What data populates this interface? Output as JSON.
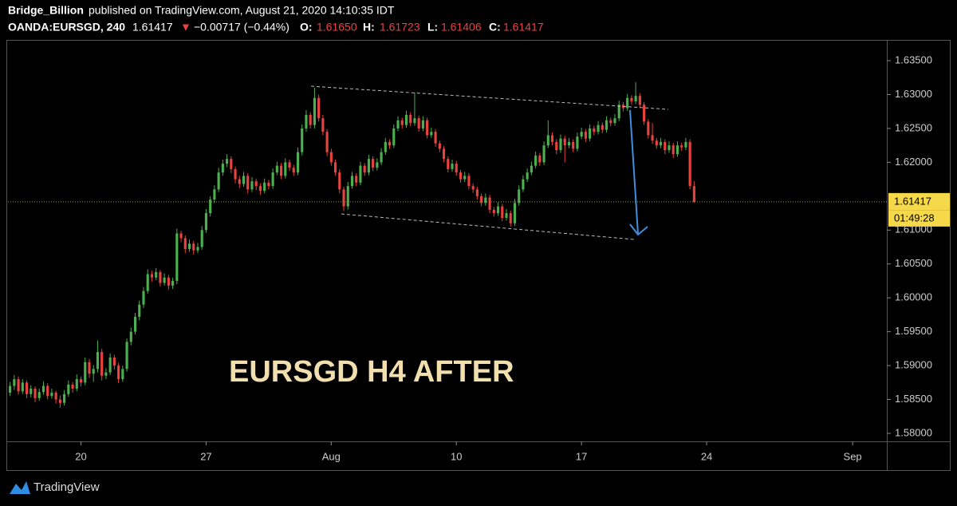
{
  "header": {
    "author": "Bridge_Billion",
    "published": "published on TradingView.com, August 21, 2020 14:10:35 IDT",
    "symbol": "OANDA:EURSGD, 240",
    "last": "1.61417",
    "arrow": "▼",
    "change": "−0.00717 (−0.44%)",
    "open_label": "O:",
    "open": "1.61650",
    "high_label": "H:",
    "high": "1.61723",
    "low_label": "L:",
    "low": "1.61406",
    "close_label": "C:",
    "close": "1.61417"
  },
  "chart_data": {
    "type": "candlestick",
    "annotation": "EURSGD H4 AFTER",
    "up_color": "#4caf50",
    "down_color": "#e8433e",
    "price_tag": "1.61417",
    "countdown": "01:49:28",
    "xlim": [
      -0.5,
      210.2
    ],
    "xticks": [
      {
        "value": 17,
        "label": "20"
      },
      {
        "value": 47,
        "label": "27"
      },
      {
        "value": 77,
        "label": "Aug"
      },
      {
        "value": 107,
        "label": "10"
      },
      {
        "value": 137,
        "label": "17"
      },
      {
        "value": 167,
        "label": "24"
      },
      {
        "value": 202,
        "label": "Sep"
      }
    ],
    "ylim": [
      1.57882,
      1.63783
    ],
    "yticks": [
      {
        "value": 1.58,
        "label": "1.58000"
      },
      {
        "value": 1.585,
        "label": "1.58500"
      },
      {
        "value": 1.59,
        "label": "1.59000"
      },
      {
        "value": 1.595,
        "label": "1.59500"
      },
      {
        "value": 1.6,
        "label": "1.60000"
      },
      {
        "value": 1.605,
        "label": "1.60500"
      },
      {
        "value": 1.61,
        "label": "1.61000"
      },
      {
        "value": 1.62,
        "label": "1.62000"
      },
      {
        "value": 1.625,
        "label": "1.62500"
      },
      {
        "value": 1.63,
        "label": "1.63000"
      },
      {
        "value": 1.635,
        "label": "1.63500"
      }
    ],
    "candles": [
      [
        1.586,
        1.5876,
        1.5855,
        1.587
      ],
      [
        1.587,
        1.5886,
        1.5864,
        1.588
      ],
      [
        1.588,
        1.5884,
        1.5857,
        1.5862
      ],
      [
        1.5862,
        1.588,
        1.5858,
        1.5875
      ],
      [
        1.5875,
        1.5878,
        1.5852,
        1.5858
      ],
      [
        1.5858,
        1.5871,
        1.5853,
        1.5866
      ],
      [
        1.5866,
        1.5869,
        1.5846,
        1.5852
      ],
      [
        1.5852,
        1.5866,
        1.5848,
        1.5861
      ],
      [
        1.5861,
        1.5877,
        1.5857,
        1.587
      ],
      [
        1.587,
        1.5874,
        1.585,
        1.5855
      ],
      [
        1.5855,
        1.5866,
        1.5851,
        1.586
      ],
      [
        1.586,
        1.5863,
        1.5844,
        1.585
      ],
      [
        1.585,
        1.5856,
        1.5838,
        1.5845
      ],
      [
        1.5845,
        1.5864,
        1.5841,
        1.5858
      ],
      [
        1.5858,
        1.5878,
        1.5854,
        1.5872
      ],
      [
        1.5872,
        1.5876,
        1.586,
        1.5866
      ],
      [
        1.5866,
        1.5887,
        1.5862,
        1.588
      ],
      [
        1.588,
        1.5884,
        1.5869,
        1.5875
      ],
      [
        1.5875,
        1.5912,
        1.5871,
        1.5905
      ],
      [
        1.5905,
        1.591,
        1.5882,
        1.5888
      ],
      [
        1.5888,
        1.5901,
        1.5876,
        1.5895
      ],
      [
        1.5895,
        1.5937,
        1.589,
        1.592
      ],
      [
        1.592,
        1.5925,
        1.5878,
        1.5885
      ],
      [
        1.5885,
        1.5896,
        1.588,
        1.589
      ],
      [
        1.589,
        1.5918,
        1.5886,
        1.5912
      ],
      [
        1.5912,
        1.5916,
        1.5894,
        1.59
      ],
      [
        1.59,
        1.5904,
        1.5874,
        1.588
      ],
      [
        1.588,
        1.59,
        1.5876,
        1.5895
      ],
      [
        1.5895,
        1.594,
        1.5891,
        1.5935
      ],
      [
        1.5935,
        1.5956,
        1.593,
        1.595
      ],
      [
        1.595,
        1.5978,
        1.5946,
        1.5972
      ],
      [
        1.5972,
        1.5996,
        1.5967,
        1.599
      ],
      [
        1.599,
        1.6016,
        1.5985,
        1.601
      ],
      [
        1.601,
        1.6042,
        1.6006,
        1.6035
      ],
      [
        1.6035,
        1.604,
        1.6024,
        1.603
      ],
      [
        1.603,
        1.6044,
        1.6026,
        1.6038
      ],
      [
        1.6038,
        1.6041,
        1.6017,
        1.6022
      ],
      [
        1.6022,
        1.6036,
        1.6018,
        1.603
      ],
      [
        1.603,
        1.6034,
        1.6012,
        1.6018
      ],
      [
        1.6018,
        1.603,
        1.6013,
        1.6025
      ],
      [
        1.6025,
        1.6102,
        1.602,
        1.6095
      ],
      [
        1.6095,
        1.6099,
        1.6082,
        1.6088
      ],
      [
        1.6088,
        1.6092,
        1.6066,
        1.6072
      ],
      [
        1.6072,
        1.6086,
        1.6068,
        1.608
      ],
      [
        1.608,
        1.6084,
        1.6064,
        1.607
      ],
      [
        1.607,
        1.6081,
        1.6066,
        1.6075
      ],
      [
        1.6075,
        1.6106,
        1.6071,
        1.61
      ],
      [
        1.61,
        1.6131,
        1.6096,
        1.6125
      ],
      [
        1.6125,
        1.615,
        1.612,
        1.6145
      ],
      [
        1.6145,
        1.6166,
        1.614,
        1.616
      ],
      [
        1.616,
        1.6192,
        1.6156,
        1.6185
      ],
      [
        1.6185,
        1.6204,
        1.618,
        1.6198
      ],
      [
        1.6198,
        1.6212,
        1.6193,
        1.6205
      ],
      [
        1.6205,
        1.6209,
        1.6184,
        1.619
      ],
      [
        1.619,
        1.6194,
        1.6169,
        1.6175
      ],
      [
        1.6175,
        1.618,
        1.6162,
        1.6168
      ],
      [
        1.6168,
        1.6186,
        1.6164,
        1.618
      ],
      [
        1.618,
        1.6184,
        1.6154,
        1.616
      ],
      [
        1.616,
        1.6178,
        1.6156,
        1.6172
      ],
      [
        1.6172,
        1.6176,
        1.6159,
        1.6165
      ],
      [
        1.6165,
        1.6169,
        1.6152,
        1.6158
      ],
      [
        1.6158,
        1.6176,
        1.6154,
        1.617
      ],
      [
        1.617,
        1.6174,
        1.616,
        1.6165
      ],
      [
        1.6165,
        1.6191,
        1.6161,
        1.6185
      ],
      [
        1.6185,
        1.6201,
        1.6181,
        1.6195
      ],
      [
        1.6195,
        1.6199,
        1.6175,
        1.618
      ],
      [
        1.618,
        1.6206,
        1.6176,
        1.62
      ],
      [
        1.62,
        1.6204,
        1.6187,
        1.6192
      ],
      [
        1.6192,
        1.6196,
        1.618,
        1.6185
      ],
      [
        1.6185,
        1.6222,
        1.6181,
        1.6215
      ],
      [
        1.6215,
        1.6256,
        1.621,
        1.625
      ],
      [
        1.625,
        1.6277,
        1.6245,
        1.627
      ],
      [
        1.627,
        1.6274,
        1.625,
        1.6255
      ],
      [
        1.6255,
        1.631,
        1.625,
        1.6295
      ],
      [
        1.6295,
        1.63,
        1.626,
        1.6265
      ],
      [
        1.6265,
        1.627,
        1.624,
        1.6245
      ],
      [
        1.6245,
        1.6249,
        1.6209,
        1.6215
      ],
      [
        1.6215,
        1.622,
        1.6195,
        1.62
      ],
      [
        1.62,
        1.6204,
        1.618,
        1.6185
      ],
      [
        1.6185,
        1.619,
        1.6154,
        1.616
      ],
      [
        1.616,
        1.6164,
        1.6128,
        1.6135
      ],
      [
        1.6135,
        1.6171,
        1.613,
        1.6165
      ],
      [
        1.6165,
        1.6186,
        1.6161,
        1.618
      ],
      [
        1.618,
        1.6184,
        1.6165,
        1.617
      ],
      [
        1.617,
        1.6201,
        1.6166,
        1.6195
      ],
      [
        1.6195,
        1.6199,
        1.618,
        1.6185
      ],
      [
        1.6185,
        1.6211,
        1.6181,
        1.6205
      ],
      [
        1.6205,
        1.6209,
        1.6187,
        1.6192
      ],
      [
        1.6192,
        1.6206,
        1.6188,
        1.62
      ],
      [
        1.62,
        1.6221,
        1.6196,
        1.6215
      ],
      [
        1.6215,
        1.6236,
        1.6211,
        1.623
      ],
      [
        1.623,
        1.6234,
        1.622,
        1.6225
      ],
      [
        1.6225,
        1.6256,
        1.6221,
        1.625
      ],
      [
        1.625,
        1.6268,
        1.6246,
        1.6262
      ],
      [
        1.6262,
        1.6266,
        1.625,
        1.6255
      ],
      [
        1.6255,
        1.6276,
        1.6251,
        1.627
      ],
      [
        1.627,
        1.6274,
        1.6253,
        1.6258
      ],
      [
        1.6258,
        1.6303,
        1.6254,
        1.6265
      ],
      [
        1.6265,
        1.6269,
        1.6245,
        1.625
      ],
      [
        1.625,
        1.6268,
        1.6246,
        1.6262
      ],
      [
        1.6262,
        1.6266,
        1.6235,
        1.624
      ],
      [
        1.624,
        1.6251,
        1.6236,
        1.6245
      ],
      [
        1.6245,
        1.6249,
        1.6223,
        1.6228
      ],
      [
        1.6228,
        1.6232,
        1.6215,
        1.622
      ],
      [
        1.622,
        1.6224,
        1.62,
        1.6205
      ],
      [
        1.6205,
        1.6209,
        1.6185,
        1.619
      ],
      [
        1.619,
        1.6204,
        1.6186,
        1.6198
      ],
      [
        1.6198,
        1.6202,
        1.618,
        1.6185
      ],
      [
        1.6185,
        1.6189,
        1.617,
        1.6175
      ],
      [
        1.6175,
        1.6186,
        1.6171,
        1.618
      ],
      [
        1.618,
        1.6184,
        1.616,
        1.6165
      ],
      [
        1.6165,
        1.6169,
        1.6155,
        1.616
      ],
      [
        1.616,
        1.6164,
        1.6145,
        1.615
      ],
      [
        1.615,
        1.6154,
        1.6135,
        1.614
      ],
      [
        1.614,
        1.6154,
        1.6136,
        1.6148
      ],
      [
        1.6148,
        1.6152,
        1.6125,
        1.613
      ],
      [
        1.613,
        1.6134,
        1.612,
        1.6125
      ],
      [
        1.6125,
        1.6141,
        1.6121,
        1.6135
      ],
      [
        1.6135,
        1.6139,
        1.6113,
        1.6118
      ],
      [
        1.6118,
        1.6131,
        1.6114,
        1.6125
      ],
      [
        1.6125,
        1.6129,
        1.6105,
        1.611
      ],
      [
        1.611,
        1.6146,
        1.6106,
        1.614
      ],
      [
        1.614,
        1.6166,
        1.6136,
        1.616
      ],
      [
        1.616,
        1.6181,
        1.6156,
        1.6175
      ],
      [
        1.6175,
        1.6191,
        1.6171,
        1.6185
      ],
      [
        1.6185,
        1.6201,
        1.6181,
        1.6195
      ],
      [
        1.6195,
        1.6216,
        1.6191,
        1.621
      ],
      [
        1.621,
        1.6214,
        1.6195,
        1.62
      ],
      [
        1.62,
        1.6231,
        1.6196,
        1.6225
      ],
      [
        1.6225,
        1.6262,
        1.6221,
        1.624
      ],
      [
        1.624,
        1.6244,
        1.6225,
        1.623
      ],
      [
        1.623,
        1.6234,
        1.6212,
        1.6218
      ],
      [
        1.6218,
        1.6241,
        1.6214,
        1.6235
      ],
      [
        1.6235,
        1.6239,
        1.62,
        1.6225
      ],
      [
        1.6225,
        1.6236,
        1.6221,
        1.623
      ],
      [
        1.623,
        1.6234,
        1.6215,
        1.622
      ],
      [
        1.622,
        1.6244,
        1.6216,
        1.6238
      ],
      [
        1.6238,
        1.6251,
        1.6234,
        1.6245
      ],
      [
        1.6245,
        1.6249,
        1.623,
        1.6235
      ],
      [
        1.6235,
        1.6256,
        1.6231,
        1.625
      ],
      [
        1.625,
        1.6254,
        1.624,
        1.6245
      ],
      [
        1.6245,
        1.6261,
        1.6241,
        1.6255
      ],
      [
        1.6255,
        1.6259,
        1.6243,
        1.6248
      ],
      [
        1.6248,
        1.6268,
        1.6244,
        1.6262
      ],
      [
        1.6262,
        1.6266,
        1.6253,
        1.6258
      ],
      [
        1.6258,
        1.6271,
        1.6254,
        1.6265
      ],
      [
        1.6265,
        1.6291,
        1.6261,
        1.6285
      ],
      [
        1.6285,
        1.6289,
        1.6275,
        1.628
      ],
      [
        1.628,
        1.6301,
        1.6276,
        1.6295
      ],
      [
        1.6295,
        1.6299,
        1.6285,
        1.629
      ],
      [
        1.629,
        1.6318,
        1.6286,
        1.6298
      ],
      [
        1.6298,
        1.6302,
        1.628,
        1.6285
      ],
      [
        1.6285,
        1.6289,
        1.6255,
        1.626
      ],
      [
        1.626,
        1.6264,
        1.6235,
        1.624
      ],
      [
        1.624,
        1.6258,
        1.6227,
        1.6232
      ],
      [
        1.6232,
        1.6236,
        1.622,
        1.6225
      ],
      [
        1.6225,
        1.6236,
        1.6221,
        1.623
      ],
      [
        1.623,
        1.6234,
        1.6212,
        1.6218
      ],
      [
        1.6218,
        1.6231,
        1.6214,
        1.6225
      ],
      [
        1.6225,
        1.6229,
        1.6206,
        1.6212
      ],
      [
        1.6212,
        1.6231,
        1.6208,
        1.6225
      ],
      [
        1.6225,
        1.6229,
        1.6217,
        1.6222
      ],
      [
        1.6222,
        1.6236,
        1.6218,
        1.623
      ],
      [
        1.623,
        1.6234,
        1.616,
        1.6165
      ],
      [
        1.6165,
        1.61723,
        1.61406,
        1.61417
      ]
    ]
  },
  "footer": {
    "brand": "TradingView"
  }
}
